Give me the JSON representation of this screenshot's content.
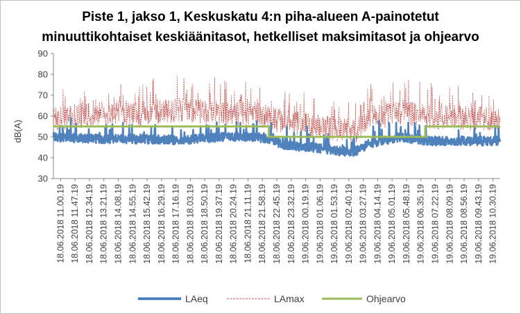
{
  "chart_data": {
    "type": "line",
    "title": [
      "Piste 1, jakso 1, Keskuskatu 4:n piha-alueen A-painotetut",
      "minuuttikohtaiset keskiäänitasot, hetkelliset maksimitasot ja ohjearvo"
    ],
    "ylabel": "dB(A)",
    "ylim": [
      30,
      90
    ],
    "yticks": [
      30,
      40,
      50,
      60,
      70,
      80,
      90
    ],
    "grid": false,
    "legend_position": "bottom",
    "x_tick_labels": [
      "18.06.2018  11.00.19",
      "18.06.2018  11.47.19",
      "18.06.2018  12.34.19",
      "18.06.2018  13.21.19",
      "18.06.2018  14.08.19",
      "18.06.2018  14.55.19",
      "18.06.2018  15.42.19",
      "18.06.2018  16.29.19",
      "18.06.2018  17.16.19",
      "18.06.2018  18.03.19",
      "18.06.2018  18.50.19",
      "18.06.2018  19.37.19",
      "18.06.2018  20.24.19",
      "18.06.2018  21.11.19",
      "18.06.2018  21.58.19",
      "18.06.2018  22.45.19",
      "18.06.2018  23.32.19",
      "19.06.2018  00.19.19",
      "19.06.2018  01.06.19",
      "19.06.2018  01.53.19",
      "19.06.2018  02.40.19",
      "19.06.2018  03.27.19",
      "19.06.2018  04.14.19",
      "19.06.2018  05.01.19",
      "19.06.2018  05.48.19",
      "19.06.2018  06.35.19",
      "19.06.2018  07.22.19",
      "19.06.2018  08.09.19",
      "19.06.2018  08.56.19",
      "19.06.2018  09.43.19",
      "19.06.2018  10.30.19"
    ],
    "series": [
      {
        "name": "LAeq",
        "color": "#4f81bd",
        "style": "solid-thick",
        "profile": [
          [
            0,
            50
          ],
          [
            3,
            49
          ],
          [
            6,
            49
          ],
          [
            9,
            48.5
          ],
          [
            12,
            50
          ],
          [
            14,
            50
          ],
          [
            15,
            49
          ],
          [
            16,
            46
          ],
          [
            18,
            45
          ],
          [
            20,
            43
          ],
          [
            21,
            43
          ],
          [
            22,
            47
          ],
          [
            24,
            50
          ],
          [
            25,
            49
          ],
          [
            26,
            48
          ],
          [
            28,
            48
          ],
          [
            31,
            48
          ]
        ],
        "peaks": [
          [
            1.2,
            65
          ],
          [
            4.6,
            57
          ],
          [
            6.3,
            60
          ],
          [
            7.4,
            57
          ],
          [
            8.3,
            60
          ],
          [
            9.1,
            62
          ],
          [
            10.6,
            56
          ],
          [
            12.4,
            58
          ],
          [
            13.2,
            58
          ],
          [
            14.6,
            58
          ],
          [
            16.2,
            55
          ],
          [
            17.6,
            56
          ],
          [
            19.3,
            54
          ],
          [
            21.4,
            58
          ],
          [
            22.6,
            60
          ],
          [
            23.3,
            66
          ],
          [
            24.4,
            61
          ],
          [
            27.3,
            59
          ],
          [
            28.3,
            56
          ],
          [
            29.6,
            54
          ]
        ]
      },
      {
        "name": "LAmax",
        "color": "#c0504d",
        "style": "dashed-thin",
        "profile": [
          [
            0,
            57
          ],
          [
            3,
            60
          ],
          [
            6,
            60
          ],
          [
            9,
            62
          ],
          [
            12,
            60
          ],
          [
            14,
            60
          ],
          [
            15,
            58
          ],
          [
            16,
            56
          ],
          [
            18,
            54
          ],
          [
            20,
            52
          ],
          [
            21,
            52
          ],
          [
            22,
            58
          ],
          [
            24,
            60
          ],
          [
            25,
            60
          ],
          [
            26,
            58
          ],
          [
            28,
            58
          ],
          [
            31,
            57
          ]
        ],
        "peaks": [
          [
            0.5,
            78
          ],
          [
            1.6,
            73
          ],
          [
            3.2,
            72
          ],
          [
            4.2,
            70
          ],
          [
            4.9,
            73
          ],
          [
            5.9,
            74
          ],
          [
            6.5,
            75
          ],
          [
            7.8,
            73
          ],
          [
            8.3,
            75
          ],
          [
            8.6,
            84
          ],
          [
            9.3,
            78
          ],
          [
            10.2,
            75
          ],
          [
            11.3,
            74
          ],
          [
            11.9,
            76
          ],
          [
            12.9,
            74
          ],
          [
            13.6,
            74
          ],
          [
            14.2,
            73
          ],
          [
            15.3,
            70
          ],
          [
            15.8,
            71
          ],
          [
            16.7,
            70
          ],
          [
            17.4,
            72
          ],
          [
            18.6,
            65
          ],
          [
            19.8,
            68
          ],
          [
            20.3,
            60
          ],
          [
            21.3,
            73
          ],
          [
            22.2,
            74
          ],
          [
            22.8,
            76
          ],
          [
            23.4,
            78
          ],
          [
            24.2,
            72
          ],
          [
            24.7,
            73
          ],
          [
            25.3,
            71
          ],
          [
            26.2,
            74
          ],
          [
            26.8,
            72
          ],
          [
            27.8,
            75
          ],
          [
            28.4,
            72
          ],
          [
            29.3,
            72
          ],
          [
            30.3,
            73
          ]
        ]
      },
      {
        "name": "Ohjearvo",
        "color": "#9bbb59",
        "style": "solid-step",
        "steps": [
          [
            0,
            55
          ],
          [
            14.95,
            55
          ],
          [
            14.95,
            50
          ],
          [
            25.8,
            50
          ],
          [
            25.8,
            55
          ],
          [
            31,
            55
          ]
        ]
      }
    ]
  }
}
